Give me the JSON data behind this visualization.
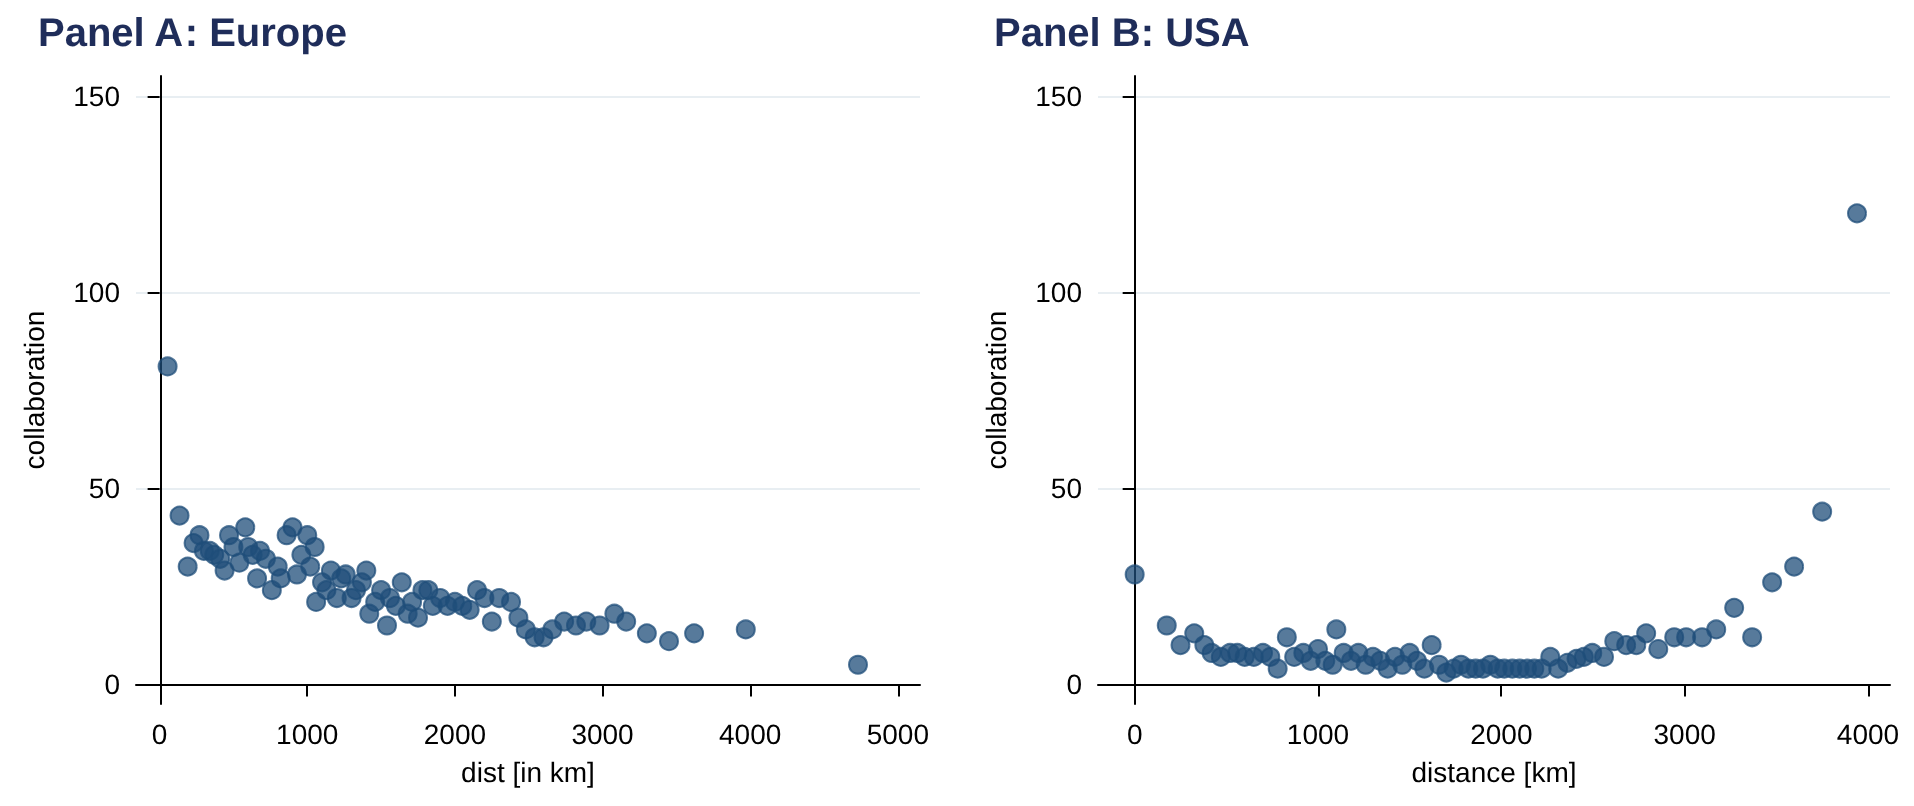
{
  "chart_data": [
    {
      "type": "scatter",
      "title": "Panel A: Europe",
      "xlabel": "dist [in km]",
      "ylabel": "collaboration",
      "xlim": [
        -160,
        5150
      ],
      "xticks": [
        0,
        1000,
        2000,
        3000,
        4000,
        5000
      ],
      "ylim": [
        -5,
        155
      ],
      "yticks": [
        0,
        50,
        100,
        150
      ],
      "grid": "y",
      "marker": "circle",
      "series": [
        {
          "color": "#1f4e79",
          "x": [
            54,
            135,
            190,
            230,
            270,
            300,
            340,
            370,
            410,
            440,
            470,
            500,
            540,
            580,
            600,
            630,
            660,
            680,
            720,
            760,
            800,
            820,
            860,
            900,
            930,
            960,
            1000,
            1020,
            1050,
            1060,
            1100,
            1130,
            1160,
            1200,
            1230,
            1260,
            1300,
            1330,
            1370,
            1400,
            1420,
            1460,
            1500,
            1540,
            1560,
            1600,
            1640,
            1680,
            1710,
            1750,
            1780,
            1820,
            1850,
            1900,
            1950,
            2000,
            2050,
            2100,
            2150,
            2200,
            2250,
            2300,
            2380,
            2430,
            2480,
            2540,
            2600,
            2660,
            2740,
            2820,
            2890,
            2980,
            3080,
            3160,
            3300,
            3450,
            3620,
            3970,
            4730
          ],
          "values": [
            81,
            43,
            30,
            36,
            38,
            34,
            34,
            33,
            32,
            29,
            38,
            35,
            31,
            40,
            35,
            33,
            27,
            34,
            32,
            24,
            30,
            27,
            38,
            40,
            28,
            33,
            38,
            30,
            35,
            21,
            26,
            24,
            29,
            22,
            27,
            28,
            22,
            24,
            26,
            29,
            18,
            21,
            24,
            15,
            22,
            20,
            26,
            18,
            21,
            17,
            24,
            24,
            20,
            22,
            20,
            21,
            20,
            19,
            24,
            22,
            16,
            22,
            21,
            17,
            14,
            12,
            12,
            14,
            16,
            15,
            16,
            15,
            18,
            16,
            13,
            11,
            13,
            14,
            5
          ]
        }
      ]
    },
    {
      "type": "scatter",
      "title": "Panel B: USA",
      "xlabel": "distance [km]",
      "ylabel": "collaboration",
      "xlim": [
        -200,
        4120
      ],
      "xticks": [
        0,
        1000,
        2000,
        3000,
        4000
      ],
      "ylim": [
        -5,
        155
      ],
      "yticks": [
        0,
        50,
        100,
        150
      ],
      "grid": "y",
      "marker": "circle",
      "series": [
        {
          "color": "#1f4e79",
          "x": [
            0,
            175,
            250,
            325,
            380,
            420,
            470,
            520,
            560,
            600,
            650,
            700,
            740,
            780,
            830,
            870,
            920,
            960,
            1000,
            1040,
            1080,
            1100,
            1140,
            1180,
            1220,
            1260,
            1300,
            1340,
            1380,
            1420,
            1460,
            1500,
            1540,
            1580,
            1620,
            1660,
            1700,
            1740,
            1780,
            1820,
            1860,
            1900,
            1940,
            1980,
            2016,
            2060,
            2100,
            2140,
            2180,
            2220,
            2267,
            2310,
            2360,
            2410,
            2450,
            2496,
            2560,
            2616,
            2681,
            2736,
            2790,
            2856,
            2943,
            3008,
            3095,
            3172,
            3270,
            3368,
            3477,
            3597,
            3750,
            3940
          ],
          "values": [
            28,
            15,
            10,
            13,
            10,
            8,
            7,
            8,
            8,
            7,
            7,
            8,
            7,
            4,
            12,
            7,
            8,
            6,
            9,
            6,
            5,
            14,
            8,
            6,
            8,
            5,
            7,
            6,
            4,
            7,
            5,
            8,
            6,
            4,
            10,
            5,
            3,
            4,
            5,
            4,
            4,
            4,
            5,
            4,
            4,
            4,
            4,
            4,
            4,
            4,
            7,
            4,
            5.5,
            6.5,
            7,
            8,
            7,
            11,
            10,
            10,
            13,
            9,
            12,
            12,
            12,
            14,
            19.5,
            12,
            26,
            30,
            44,
            120
          ]
        }
      ]
    }
  ]
}
